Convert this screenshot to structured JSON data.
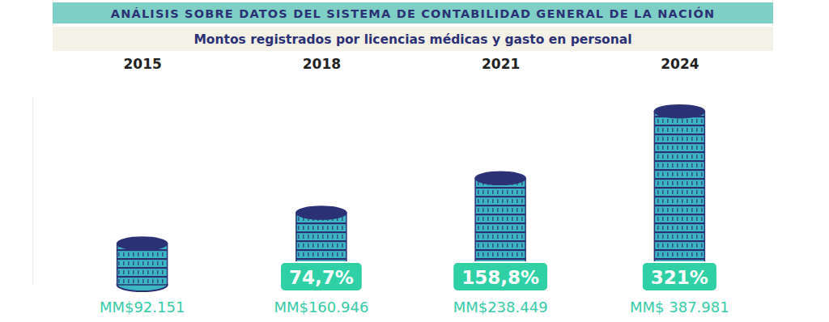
{
  "chart_data": {
    "type": "bar",
    "title": "ANÁLISIS SOBRE DATOS DEL SISTEMA DE CONTABILIDAD GENERAL DE LA NACIÓN",
    "subtitle": "Montos registrados por licencias médicas y gasto en personal",
    "categories": [
      "2015",
      "2018",
      "2021",
      "2024"
    ],
    "values": [
      92151,
      160946,
      238449,
      387981
    ],
    "value_labels": [
      "MM$92.151",
      "MM$160.946",
      "MM$238.449",
      "MM$ 387.981"
    ],
    "data_labels": true,
    "color": "#3bb6c2",
    "ylim": [
      0,
      420000
    ],
    "yticks": [],
    "grid": false,
    "tick_labels": "x",
    "annotations": [
      {
        "category": "2018",
        "label": "74,7%"
      },
      {
        "category": "2021",
        "label": "158,8%"
      },
      {
        "category": "2024",
        "label": "321%"
      }
    ]
  }
}
